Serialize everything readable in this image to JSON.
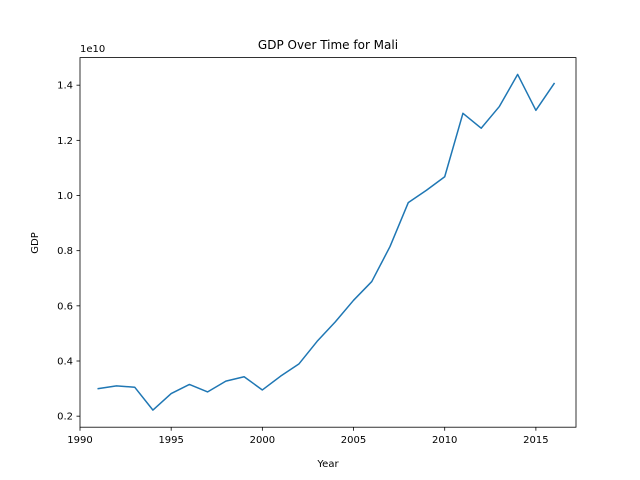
{
  "chart_data": {
    "type": "line",
    "title": "GDP Over Time for Mali",
    "xlabel": "Year",
    "ylabel": "GDP",
    "y_offset_label": "1e10",
    "xlim": [
      1990,
      2017.2
    ],
    "ylim": [
      0.16,
      1.5
    ],
    "x_ticks": [
      1990,
      1995,
      2000,
      2005,
      2010,
      2015
    ],
    "y_ticks": [
      0.2,
      0.4,
      0.6,
      0.8,
      1.0,
      1.2,
      1.4
    ],
    "y_tick_labels": [
      "0.2",
      "0.4",
      "0.6",
      "0.8",
      "1.0",
      "1.2",
      "1.4"
    ],
    "grid": false,
    "series": [
      {
        "color": "#1f77b4",
        "x": [
          1991,
          1992,
          1993,
          1994,
          1995,
          1996,
          1997,
          1998,
          1999,
          2000,
          2001,
          2002,
          2003,
          2004,
          2005,
          2006,
          2007,
          2008,
          2009,
          2010,
          2011,
          2012,
          2013,
          2014,
          2015,
          2016
        ],
        "y": [
          0.3,
          0.31,
          0.305,
          0.222,
          0.282,
          0.315,
          0.288,
          0.327,
          0.343,
          0.295,
          0.345,
          0.389,
          0.471,
          0.542,
          0.62,
          0.688,
          0.815,
          0.974,
          1.019,
          1.068,
          1.298,
          1.244,
          1.323,
          1.439,
          1.309,
          1.406
        ]
      }
    ]
  }
}
